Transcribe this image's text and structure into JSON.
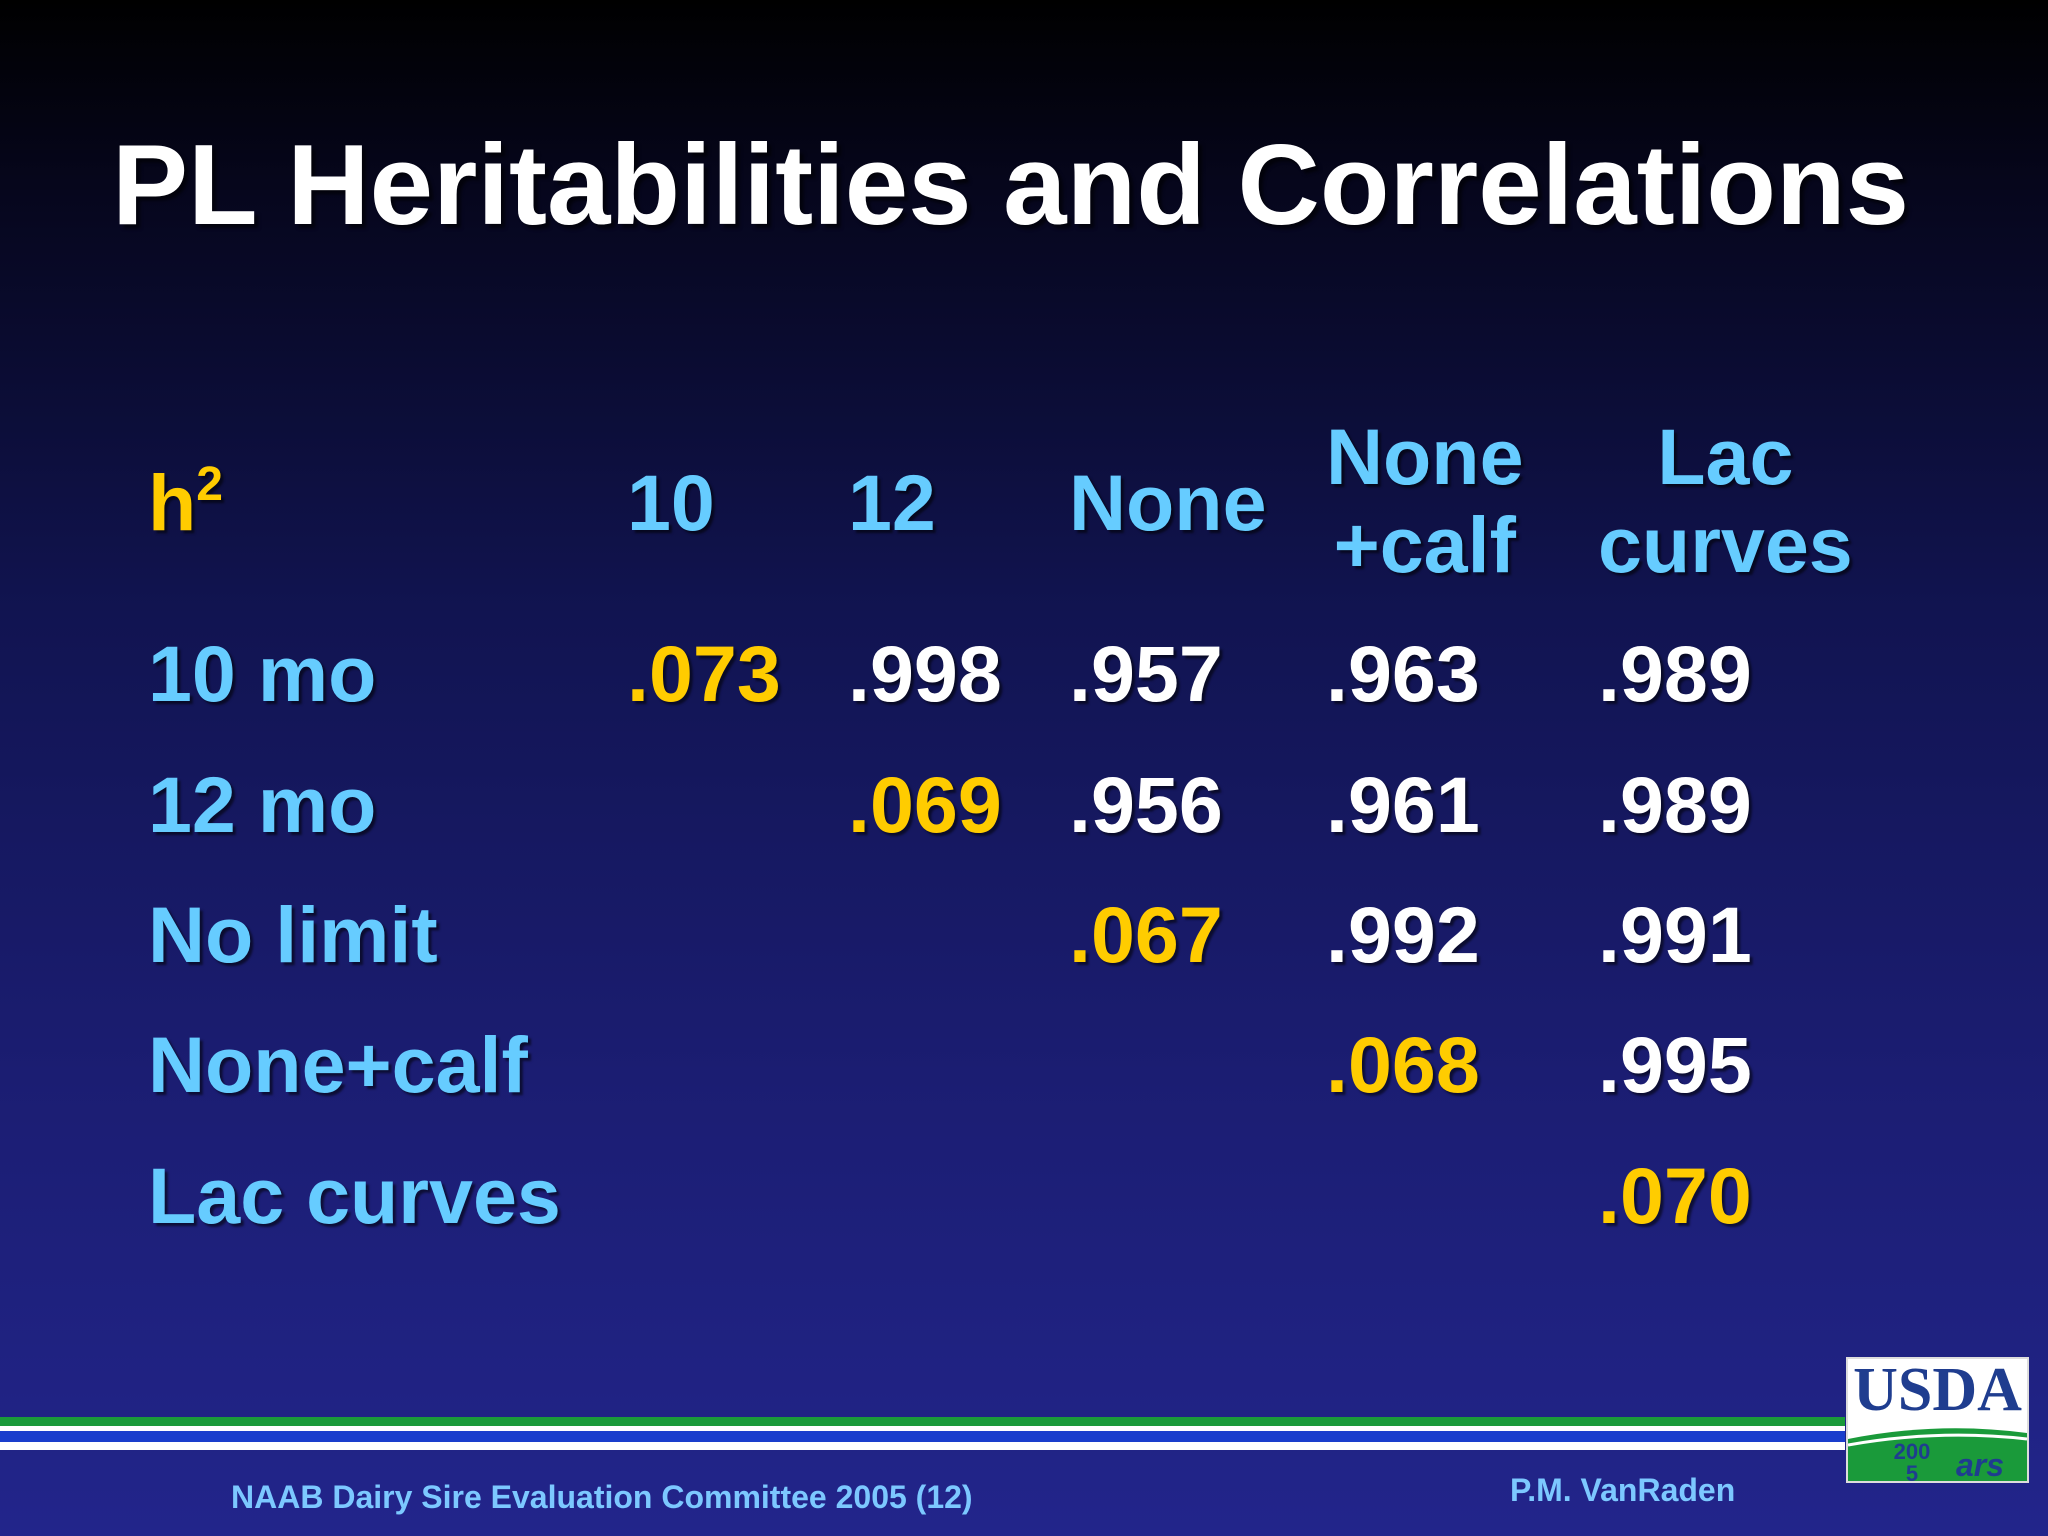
{
  "title": "PL Heritabilities and Correlations",
  "table": {
    "corner_label": "h",
    "corner_superscript": "2",
    "column_headers": [
      {
        "line1": "10",
        "line2": ""
      },
      {
        "line1": "12",
        "line2": ""
      },
      {
        "line1": "None",
        "line2": ""
      },
      {
        "line1": "None",
        "line2": "+calf"
      },
      {
        "line1": "Lac",
        "line2": "curves"
      }
    ],
    "rows": [
      {
        "label": "10 mo",
        "cells": [
          ".073",
          ".998",
          ".957",
          ".963",
          ".989"
        ]
      },
      {
        "label": "12 mo",
        "cells": [
          "",
          ".069",
          ".956",
          ".961",
          ".989"
        ]
      },
      {
        "label": "No limit",
        "cells": [
          "",
          "",
          ".067",
          ".992",
          ".991"
        ]
      },
      {
        "label": "None+calf",
        "cells": [
          "",
          "",
          "",
          ".068",
          ".995"
        ]
      },
      {
        "label": "Lac curves",
        "cells": [
          "",
          "",
          "",
          "",
          ".070"
        ]
      }
    ]
  },
  "footer": {
    "left": "NAAB Dairy Sire Evaluation Committee 2005 (12)",
    "right": "P.M. VanRaden",
    "logo_text": "USDA",
    "logo_year": "2005",
    "logo_agency_mark": "ars"
  },
  "colors": {
    "title": "#ffffff",
    "header_text": "#66ccff",
    "heritability": "#ffcc00",
    "correlation": "#ffffff",
    "stripe_green": "#1a9a3a",
    "stripe_blue": "#1a3ecc",
    "stripe_white": "#ffffff"
  }
}
